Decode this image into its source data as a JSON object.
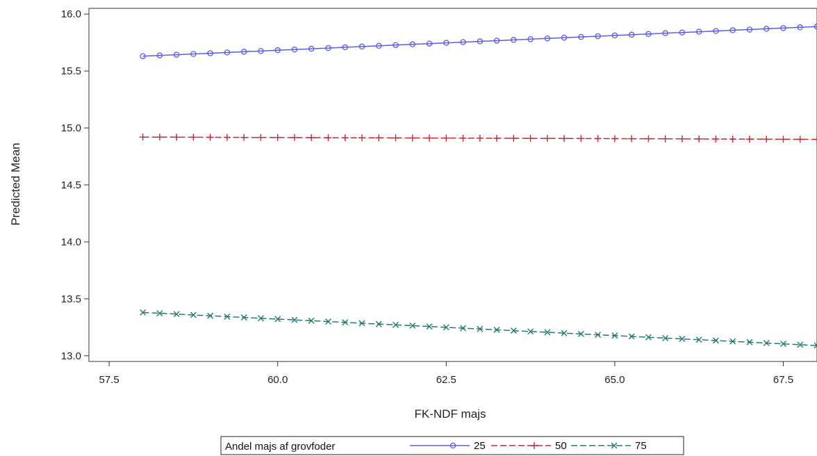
{
  "chart_data": {
    "type": "line",
    "xlabel": "FK-NDF majs",
    "ylabel": "Predicted Mean",
    "xlim": [
      57.2,
      68.0
    ],
    "ylim": [
      12.95,
      16.05
    ],
    "x_ticks": [
      57.5,
      60.0,
      62.5,
      65.0,
      67.5
    ],
    "y_ticks": [
      13.0,
      13.5,
      14.0,
      14.5,
      15.0,
      15.5,
      16.0
    ],
    "x_tick_labels": [
      "57.5",
      "60.0",
      "62.5",
      "65.0",
      "67.5"
    ],
    "y_tick_labels": [
      "13.0",
      "13.5",
      "14.0",
      "14.5",
      "15.0",
      "15.5",
      "16.0"
    ],
    "x_range": {
      "start": 58.0,
      "end": 68.0,
      "count": 41
    },
    "legend": {
      "title": "Andel majs af grovfoder",
      "position": "bottom"
    },
    "series": [
      {
        "name": "25",
        "marker": "circle",
        "line": "solid",
        "color": "#5a5ae6",
        "y_start": 15.63,
        "y_end": 15.89
      },
      {
        "name": "50",
        "marker": "plus",
        "line": "dashed",
        "color": "#c0283c",
        "y_start": 14.92,
        "y_end": 14.9
      },
      {
        "name": "75",
        "marker": "x",
        "line": "dashed",
        "color": "#237a73",
        "y_start": 13.38,
        "y_end": 13.09
      }
    ]
  }
}
